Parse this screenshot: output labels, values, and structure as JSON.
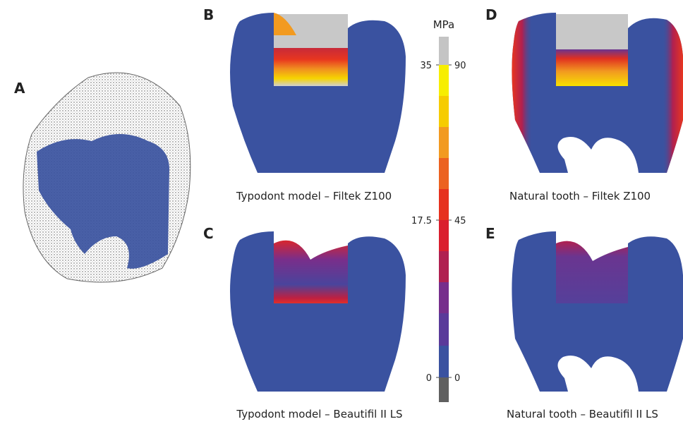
{
  "panels": [
    {
      "label": "A"
    },
    {
      "label": "B",
      "caption": "Typodont model – Filtek Z100"
    },
    {
      "label": "C",
      "caption": "Typodont model – Beautifil II LS"
    },
    {
      "label": "D",
      "caption": "Natural tooth – Filtek Z100"
    },
    {
      "label": "E",
      "caption": "Natural tooth – Beautifil II LS"
    }
  ],
  "colorbar": {
    "unit": "MPa",
    "left_ticks": [
      35,
      17.5,
      0
    ],
    "right_ticks": [
      90,
      45,
      0
    ]
  }
}
